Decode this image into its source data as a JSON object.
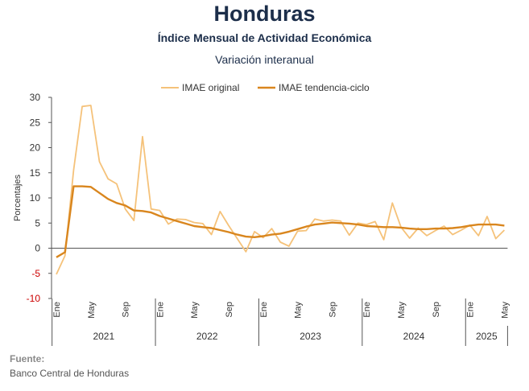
{
  "header": {
    "title": "Honduras",
    "subtitle": "Índice Mensual de Actividad Económica",
    "subsubtitle": "Variación interanual"
  },
  "source": {
    "label": "Fuente:",
    "text": "Banco Central de Honduras"
  },
  "colors": {
    "original": "#f5c27a",
    "trend": "#d9861e",
    "negative_tick": "#cc0000",
    "axis": "#555555"
  },
  "chart_data": {
    "type": "line",
    "title": "Índice Mensual de Actividad Económica",
    "ylabel": "Porcentajes",
    "ylim": [
      -10,
      30
    ],
    "yticks": [
      30,
      25,
      20,
      15,
      10,
      5,
      0,
      -5,
      -10
    ],
    "legend_position": "top",
    "grid": false,
    "years": [
      {
        "label": "2021",
        "start": 0,
        "end": 12
      },
      {
        "label": "2022",
        "start": 12,
        "end": 24
      },
      {
        "label": "2023",
        "start": 24,
        "end": 36
      },
      {
        "label": "2024",
        "start": 36,
        "end": 48
      },
      {
        "label": "2025",
        "start": 48,
        "end": 53
      }
    ],
    "month_ticks": [
      {
        "i": 0,
        "label": "Ene"
      },
      {
        "i": 4,
        "label": "May"
      },
      {
        "i": 8,
        "label": "Sep"
      },
      {
        "i": 12,
        "label": "Ene"
      },
      {
        "i": 16,
        "label": "May"
      },
      {
        "i": 20,
        "label": "Sep"
      },
      {
        "i": 24,
        "label": "Ene"
      },
      {
        "i": 28,
        "label": "May"
      },
      {
        "i": 32,
        "label": "Sep"
      },
      {
        "i": 36,
        "label": "Ene"
      },
      {
        "i": 40,
        "label": "May"
      },
      {
        "i": 44,
        "label": "Sep"
      },
      {
        "i": 48,
        "label": "Ene"
      },
      {
        "i": 52,
        "label": "May"
      }
    ],
    "series": [
      {
        "name": "IMAE original",
        "values": [
          -5.2,
          -1.5,
          15.5,
          28.2,
          28.4,
          17.2,
          13.8,
          12.8,
          7.8,
          5.5,
          22.2,
          7.8,
          7.5,
          4.8,
          5.8,
          5.7,
          5.1,
          4.9,
          2.7,
          7.3,
          4.5,
          1.9,
          -0.7,
          3.3,
          2.1,
          3.9,
          1.2,
          0.4,
          3.4,
          3.5,
          5.8,
          5.4,
          5.6,
          5.4,
          2.6,
          5.0,
          4.7,
          5.3,
          1.7,
          9.0,
          4.2,
          2.0,
          4.0,
          2.5,
          3.5,
          4.4,
          2.7,
          3.6,
          4.6,
          2.5,
          6.3,
          1.9,
          3.6
        ]
      },
      {
        "name": "IMAE tendencia-ciclo",
        "values": [
          -1.8,
          -0.8,
          12.3,
          12.3,
          12.2,
          11.0,
          9.8,
          9.0,
          8.5,
          7.5,
          7.4,
          7.1,
          6.4,
          5.9,
          5.4,
          4.9,
          4.4,
          4.2,
          4.0,
          3.6,
          3.2,
          2.7,
          2.3,
          2.2,
          2.4,
          2.7,
          2.9,
          3.3,
          3.8,
          4.3,
          4.7,
          4.9,
          5.1,
          5.0,
          4.9,
          4.7,
          4.4,
          4.3,
          4.2,
          4.2,
          4.1,
          3.9,
          3.8,
          3.8,
          3.9,
          3.9,
          4.0,
          4.2,
          4.5,
          4.7,
          4.7,
          4.7,
          4.5
        ]
      }
    ]
  }
}
